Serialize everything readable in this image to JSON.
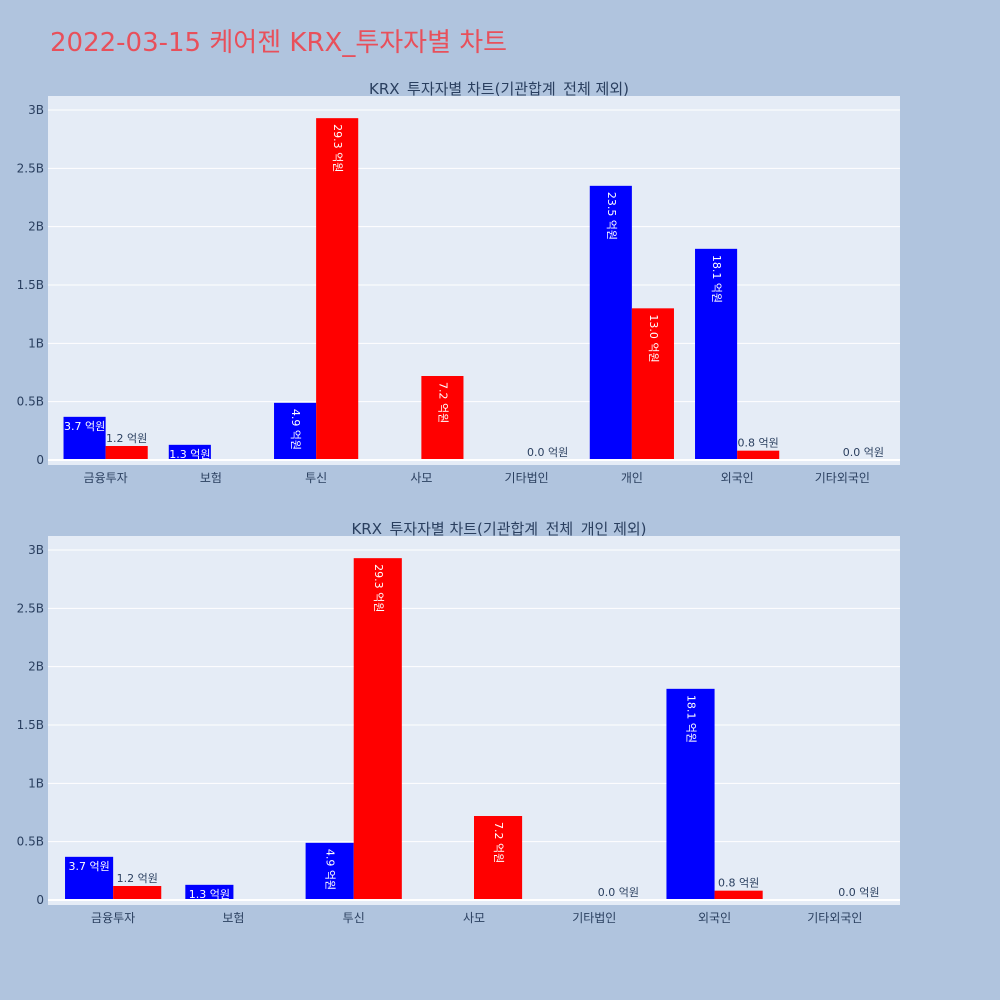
{
  "page": {
    "title": "2022-03-15 케어젠 KRX_투자자별 차트"
  },
  "colors": {
    "background": "#b0c4de",
    "plot_bg": "#e5ecf6",
    "grid": "#ffffff",
    "title_color": "#e8505b",
    "series_1": "#0000ff",
    "series_2": "#ff0000",
    "axis_text": "#2a3f5f"
  },
  "chart_data": [
    {
      "type": "bar",
      "title": "KRX_투자자별 차트(기관합계_전체 제외)",
      "categories": [
        "금융투자",
        "보험",
        "투신",
        "사모",
        "기타법인",
        "개인",
        "외국인",
        "기타외국인"
      ],
      "ylim": [
        0,
        3000000000
      ],
      "yticks": [
        "0",
        "0.5B",
        "1B",
        "1.5B",
        "2B",
        "2.5B",
        "3B"
      ],
      "series": [
        {
          "color": "#0000ff",
          "values": [
            370000000,
            130000000,
            490000000,
            0,
            0,
            2350000000,
            1810000000,
            0
          ],
          "labels": [
            "3.7 억원",
            "1.3 억원",
            "4.9 억원",
            "",
            "",
            "23.5 억원",
            "18.1 억원",
            ""
          ]
        },
        {
          "color": "#ff0000",
          "values": [
            120000000,
            0,
            2930000000,
            720000000,
            0,
            1300000000,
            80000000,
            0
          ],
          "labels": [
            "1.2 억원",
            "",
            "29.3 억원",
            "7.2 억원",
            "0.0 억원",
            "13.0 억원",
            "0.8 억원",
            "0.0 억원"
          ]
        }
      ]
    },
    {
      "type": "bar",
      "title": "KRX_투자자별 차트(기관합계_전체_개인 제외)",
      "categories": [
        "금융투자",
        "보험",
        "투신",
        "사모",
        "기타법인",
        "외국인",
        "기타외국인"
      ],
      "ylim": [
        0,
        3000000000
      ],
      "yticks": [
        "0",
        "0.5B",
        "1B",
        "1.5B",
        "2B",
        "2.5B",
        "3B"
      ],
      "series": [
        {
          "color": "#0000ff",
          "values": [
            370000000,
            130000000,
            490000000,
            0,
            0,
            1810000000,
            0
          ],
          "labels": [
            "3.7 억원",
            "1.3 억원",
            "4.9 억원",
            "",
            "",
            "18.1 억원",
            ""
          ]
        },
        {
          "color": "#ff0000",
          "values": [
            120000000,
            0,
            2930000000,
            720000000,
            0,
            80000000,
            0
          ],
          "labels": [
            "1.2 억원",
            "",
            "29.3 억원",
            "7.2 억원",
            "0.0 억원",
            "0.8 억원",
            "0.0 억원"
          ]
        }
      ]
    }
  ]
}
